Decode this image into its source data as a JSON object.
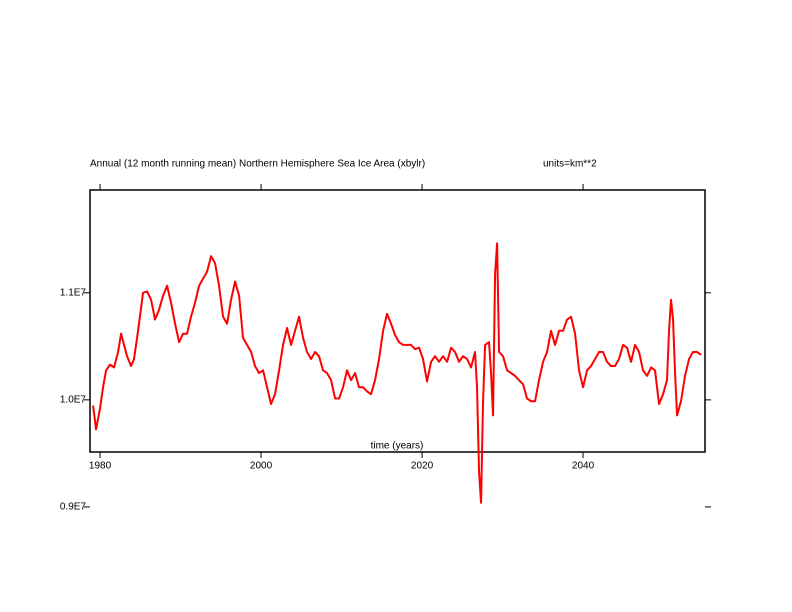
{
  "chart_data": {
    "type": "line",
    "title": "Annual (12 month running mean) Northern Hemisphere Sea Ice Area (xbylr)",
    "subtitle": "units=km**2",
    "x_label": "time (years)",
    "xlim": [
      1978.75,
      2055.15
    ],
    "ylim": [
      9513000,
      11960000
    ],
    "xticks": [
      1980,
      2000,
      2020,
      2040
    ],
    "yticks": [
      {
        "value": 9000000,
        "label": "0.9E7"
      },
      {
        "value": 10000000,
        "label": "1.0E7"
      },
      {
        "value": 11000000,
        "label": "1.1E7"
      }
    ],
    "series": [
      {
        "name": "Northern Hemisphere Sea Ice Area",
        "color": "#ff0000",
        "x": [
          1979.13,
          1979.5,
          1980,
          1980.37,
          1980.75,
          1981.24,
          1981.74,
          1982.24,
          1982.61,
          1982.98,
          1983.35,
          1983.85,
          1984.22,
          1984.72,
          1985.34,
          1985.84,
          1986.34,
          1986.83,
          1987.33,
          1987.83,
          1988.32,
          1988.82,
          1989.32,
          1989.81,
          1990.31,
          1990.81,
          1991.3,
          1991.8,
          1992.3,
          1992.8,
          1993.29,
          1993.79,
          1994.29,
          1994.78,
          1995.28,
          1995.78,
          1996.27,
          1996.77,
          1997.27,
          1997.76,
          1998.26,
          1998.76,
          1999.25,
          1999.75,
          2000.25,
          2000.75,
          2001.24,
          2001.74,
          2002.24,
          2002.73,
          2003.23,
          2003.73,
          2004.22,
          2004.72,
          2005.22,
          2005.71,
          2006.21,
          2006.71,
          2007.2,
          2007.7,
          2008.2,
          2008.7,
          2009.19,
          2009.69,
          2010.19,
          2010.68,
          2011.18,
          2011.68,
          2012.17,
          2012.67,
          2013.17,
          2013.66,
          2014.16,
          2014.66,
          2015.16,
          2015.65,
          2016.15,
          2016.65,
          2017.14,
          2017.64,
          2018.14,
          2018.63,
          2019.13,
          2019.63,
          2020.12,
          2020.62,
          2021.12,
          2021.61,
          2022.11,
          2022.61,
          2023.11,
          2023.6,
          2024.1,
          2024.6,
          2025.09,
          2025.59,
          2026.09,
          2026.58,
          2026.83,
          2027.08,
          2027.33,
          2027.58,
          2027.83,
          2028.32,
          2028.57,
          2028.82,
          2029.07,
          2029.32,
          2029.57,
          2030.06,
          2030.56,
          2031.06,
          2031.55,
          2032.05,
          2032.55,
          2033.04,
          2033.54,
          2034.04,
          2034.53,
          2035.03,
          2035.53,
          2036.02,
          2036.52,
          2037.02,
          2037.52,
          2038.01,
          2038.51,
          2039.01,
          2039.5,
          2040,
          2040.5,
          2040.99,
          2041.49,
          2041.99,
          2042.48,
          2042.98,
          2043.48,
          2043.98,
          2044.47,
          2044.97,
          2045.47,
          2045.96,
          2046.46,
          2046.96,
          2047.45,
          2047.95,
          2048.45,
          2048.94,
          2049.44,
          2049.94,
          2050.43,
          2050.68,
          2050.93,
          2051.18,
          2051.43,
          2051.68,
          2052.17,
          2052.67,
          2053.17,
          2053.66,
          2054.16,
          2054.66
        ],
        "values": [
          9947000,
          9724000,
          9921000,
          10118000,
          10276000,
          10329000,
          10303000,
          10447000,
          10618000,
          10513000,
          10408000,
          10316000,
          10382000,
          10645000,
          11000000,
          11013000,
          10934000,
          10750000,
          10842000,
          10974000,
          11066000,
          10908000,
          10711000,
          10539000,
          10618000,
          10618000,
          10776000,
          10908000,
          11066000,
          11132000,
          11197000,
          11342000,
          11276000,
          11066000,
          10776000,
          10711000,
          10934000,
          11105000,
          10974000,
          10579000,
          10513000,
          10447000,
          10316000,
          10250000,
          10276000,
          10118000,
          9961000,
          10053000,
          10276000,
          10513000,
          10671000,
          10513000,
          10645000,
          10776000,
          10579000,
          10447000,
          10382000,
          10447000,
          10408000,
          10276000,
          10250000,
          10184000,
          10013000,
          10013000,
          10118000,
          10276000,
          10184000,
          10250000,
          10118000,
          10118000,
          10079000,
          10053000,
          10184000,
          10382000,
          10645000,
          10803000,
          10711000,
          10605000,
          10539000,
          10513000,
          10513000,
          10513000,
          10474000,
          10487000,
          10382000,
          10171000,
          10355000,
          10408000,
          10355000,
          10408000,
          10355000,
          10487000,
          10447000,
          10355000,
          10408000,
          10382000,
          10303000,
          10447000,
          10118000,
          9329000,
          9039000,
          9987000,
          10513000,
          10539000,
          10250000,
          9855000,
          11171000,
          11461000,
          10447000,
          10408000,
          10276000,
          10250000,
          10224000,
          10184000,
          10145000,
          10013000,
          9987000,
          9987000,
          10184000,
          10355000,
          10447000,
          10645000,
          10513000,
          10645000,
          10645000,
          10750000,
          10776000,
          10618000,
          10276000,
          10118000,
          10276000,
          10316000,
          10382000,
          10447000,
          10447000,
          10355000,
          10316000,
          10316000,
          10382000,
          10513000,
          10487000,
          10355000,
          10513000,
          10447000,
          10276000,
          10224000,
          10303000,
          10276000,
          9961000,
          10053000,
          10184000,
          10645000,
          10934000,
          10750000,
          10250000,
          9855000,
          9987000,
          10224000,
          10382000,
          10447000,
          10447000,
          10421000
        ]
      }
    ]
  }
}
